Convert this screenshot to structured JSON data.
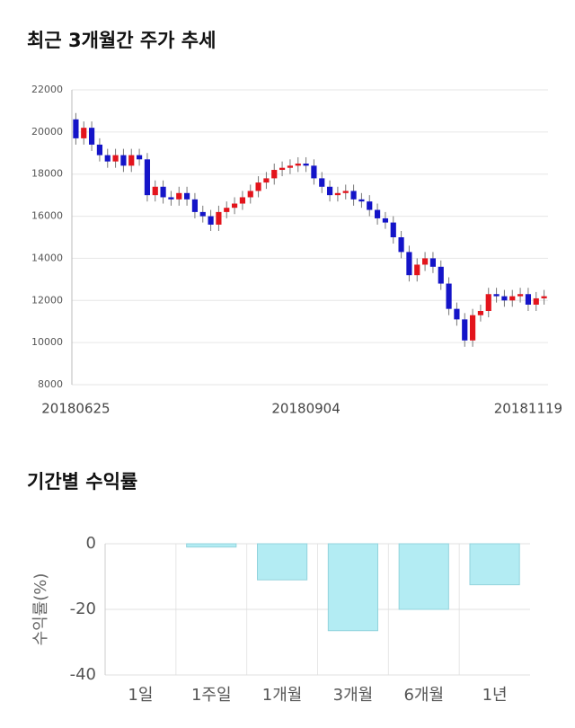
{
  "chart_data": [
    {
      "type": "candlestick",
      "title": "최근 3개월간 주가 추세",
      "categories": [
        "20180625",
        null,
        null,
        null,
        null,
        null,
        null,
        null,
        null,
        null,
        null,
        null,
        null,
        null,
        null,
        null,
        null,
        null,
        null,
        null,
        null,
        null,
        null,
        null,
        null,
        null,
        null,
        null,
        null,
        "20180904",
        null,
        null,
        null,
        null,
        null,
        null,
        null,
        null,
        null,
        null,
        null,
        null,
        null,
        null,
        null,
        null,
        null,
        null,
        null,
        null,
        null,
        null,
        null,
        null,
        null,
        null,
        null,
        "20181119",
        null,
        null
      ],
      "open": [
        20600,
        19700,
        20200,
        19400,
        18900,
        18600,
        18900,
        18400,
        18900,
        18700,
        17000,
        17400,
        16900,
        16800,
        17100,
        16800,
        16200,
        16000,
        15600,
        16200,
        16400,
        16600,
        16900,
        17200,
        17600,
        17800,
        18200,
        18300,
        18400,
        18500,
        18400,
        17800,
        17400,
        17000,
        17100,
        17200,
        16800,
        16700,
        16300,
        15900,
        15700,
        15000,
        14300,
        13200,
        13700,
        14000,
        13600,
        12800,
        11600,
        11100,
        10100,
        11300,
        11500,
        12300,
        12200,
        12000,
        12200,
        12300,
        11800,
        12100
      ],
      "high": [
        20900,
        20500,
        20500,
        19700,
        19200,
        19200,
        19200,
        19200,
        19200,
        19000,
        17700,
        17700,
        17200,
        17400,
        17400,
        17100,
        16500,
        16300,
        16500,
        16700,
        16900,
        17200,
        17500,
        17900,
        18100,
        18500,
        18600,
        18700,
        18800,
        18800,
        18700,
        18100,
        17700,
        17400,
        17500,
        17500,
        17100,
        17000,
        16600,
        16200,
        16000,
        15300,
        14600,
        14000,
        14300,
        14300,
        13900,
        13100,
        11900,
        11400,
        11600,
        11800,
        12600,
        12600,
        12500,
        12500,
        12600,
        12600,
        12400,
        12500
      ],
      "low": [
        19400,
        19400,
        19100,
        18600,
        18300,
        18300,
        18100,
        18100,
        18400,
        16700,
        16700,
        16600,
        16500,
        16500,
        16500,
        15900,
        15700,
        15300,
        15300,
        15900,
        16100,
        16300,
        16600,
        16900,
        17300,
        17500,
        17900,
        18000,
        18100,
        18100,
        17500,
        17100,
        16700,
        16700,
        16800,
        16500,
        16400,
        16000,
        15600,
        15400,
        14700,
        14000,
        12900,
        12900,
        13400,
        13300,
        12500,
        11300,
        10800,
        9800,
        9800,
        11000,
        11200,
        11900,
        11700,
        11700,
        11900,
        11500,
        11500,
        11800
      ],
      "close": [
        19700,
        20200,
        19400,
        18900,
        18600,
        18900,
        18400,
        18900,
        18700,
        17000,
        17400,
        16900,
        16800,
        17100,
        16800,
        16200,
        16000,
        15600,
        16200,
        16400,
        16600,
        16900,
        17200,
        17600,
        17800,
        18200,
        18300,
        18400,
        18500,
        18400,
        17800,
        17400,
        17000,
        17100,
        17200,
        16800,
        16700,
        16300,
        15900,
        15700,
        15000,
        14300,
        13200,
        13700,
        14000,
        13600,
        12800,
        11600,
        11100,
        10100,
        11300,
        11500,
        12300,
        12200,
        12000,
        12200,
        12300,
        11800,
        12100,
        12200
      ],
      "up_color": "#e3141c",
      "down_color": "#1414c8",
      "ylim": [
        8000,
        22000
      ],
      "yticks": [
        8000,
        10000,
        12000,
        14000,
        16000,
        18000,
        20000,
        22000
      ],
      "grid": true
    },
    {
      "type": "bar",
      "title": "기간별 수익률",
      "ylabel": "수익률(%)",
      "categories": [
        "1일",
        "1주일",
        "1개월",
        "3개월",
        "6개월",
        "1년"
      ],
      "values": [
        0,
        -1,
        -11,
        -26.5,
        -20,
        -12.5
      ],
      "color": "#b3ecf3",
      "ylim": [
        -40,
        0
      ],
      "yticks": [
        -40,
        -20,
        0
      ],
      "grid": true
    }
  ]
}
